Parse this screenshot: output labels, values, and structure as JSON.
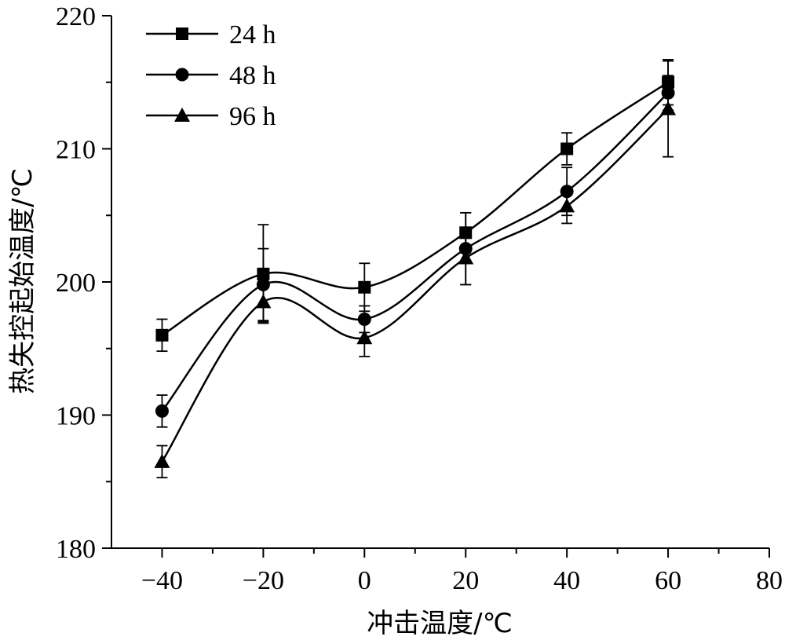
{
  "chart_data": {
    "type": "line",
    "title": "",
    "xlabel": "冲击温度/℃",
    "ylabel": "热失控起始温度/℃",
    "xlim": [
      -50,
      80
    ],
    "ylim": [
      180,
      220
    ],
    "x_ticks": [
      -40,
      -20,
      0,
      20,
      40,
      60,
      80
    ],
    "x_tick_labels": [
      "−40",
      "−20",
      "0",
      "20",
      "40",
      "60",
      "80"
    ],
    "y_ticks": [
      180,
      190,
      200,
      210,
      220
    ],
    "y_tick_labels": [
      "180",
      "190",
      "200",
      "210",
      "220"
    ],
    "grid": false,
    "legend_position": "top-left",
    "x": [
      -40,
      -20,
      0,
      20,
      40,
      60
    ],
    "series": [
      {
        "name": "24 h",
        "marker": "square",
        "values": [
          196.0,
          200.6,
          199.6,
          203.7,
          210.0,
          215.0
        ],
        "errors": [
          1.2,
          3.7,
          1.8,
          1.5,
          1.2,
          1.7
        ]
      },
      {
        "name": "48 h",
        "marker": "circle",
        "values": [
          190.3,
          199.8,
          197.2,
          202.5,
          206.8,
          214.2
        ],
        "errors": [
          1.2,
          2.7,
          1.0,
          2.7,
          1.8,
          1.3
        ]
      },
      {
        "name": "96 h",
        "marker": "triangle",
        "values": [
          186.5,
          198.5,
          195.8,
          201.8,
          205.7,
          213.0
        ],
        "errors": [
          1.2,
          1.5,
          1.4,
          2.0,
          1.3,
          3.6
        ]
      }
    ]
  }
}
